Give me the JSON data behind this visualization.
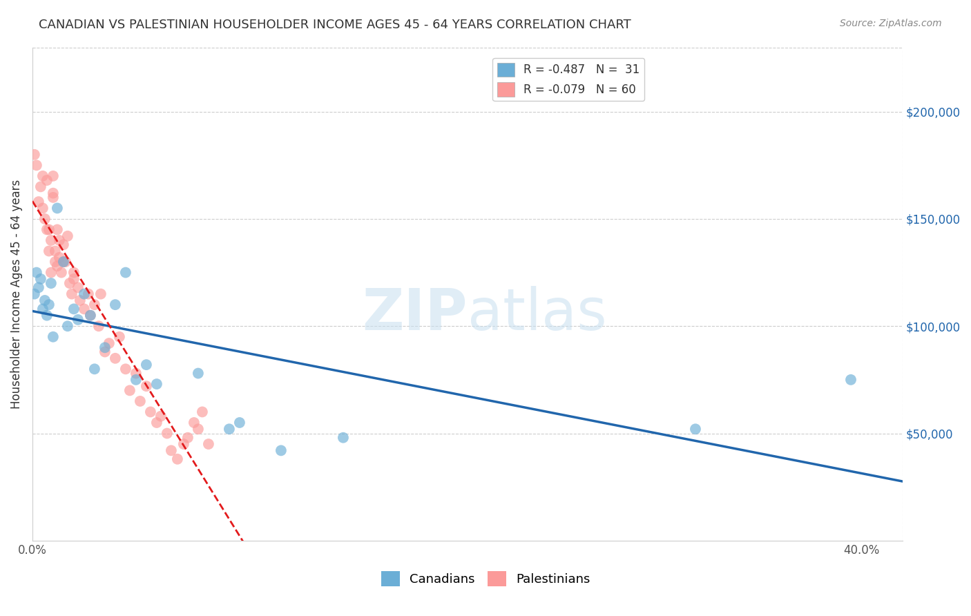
{
  "title": "CANADIAN VS PALESTINIAN HOUSEHOLDER INCOME AGES 45 - 64 YEARS CORRELATION CHART",
  "source": "Source: ZipAtlas.com",
  "ylabel": "Householder Income Ages 45 - 64 years",
  "ytick_values": [
    50000,
    100000,
    150000,
    200000
  ],
  "ylim": [
    0,
    230000
  ],
  "xlim": [
    0.0,
    0.42
  ],
  "legend_blue_r": "-0.487",
  "legend_blue_n": "31",
  "legend_pink_r": "-0.079",
  "legend_pink_n": "60",
  "canadians_label": "Canadians",
  "palestinians_label": "Palestinians",
  "blue_color": "#6baed6",
  "pink_color": "#fb9a99",
  "blue_line_color": "#2166ac",
  "pink_line_color": "#e31a1c",
  "watermark_zip": "ZIP",
  "watermark_atlas": "atlas",
  "canadians_x": [
    0.001,
    0.002,
    0.003,
    0.004,
    0.005,
    0.006,
    0.007,
    0.008,
    0.009,
    0.01,
    0.012,
    0.015,
    0.017,
    0.02,
    0.022,
    0.025,
    0.028,
    0.03,
    0.035,
    0.04,
    0.045,
    0.05,
    0.055,
    0.06,
    0.08,
    0.095,
    0.1,
    0.12,
    0.15,
    0.32,
    0.395
  ],
  "canadians_y": [
    115000,
    125000,
    118000,
    122000,
    108000,
    112000,
    105000,
    110000,
    120000,
    95000,
    155000,
    130000,
    100000,
    108000,
    103000,
    115000,
    105000,
    80000,
    90000,
    110000,
    125000,
    75000,
    82000,
    73000,
    78000,
    52000,
    55000,
    42000,
    48000,
    52000,
    75000
  ],
  "palestinians_x": [
    0.001,
    0.002,
    0.003,
    0.004,
    0.005,
    0.006,
    0.007,
    0.008,
    0.009,
    0.01,
    0.011,
    0.012,
    0.013,
    0.014,
    0.015,
    0.016,
    0.017,
    0.018,
    0.019,
    0.02,
    0.022,
    0.023,
    0.025,
    0.027,
    0.028,
    0.03,
    0.032,
    0.033,
    0.035,
    0.037,
    0.04,
    0.042,
    0.045,
    0.047,
    0.05,
    0.052,
    0.055,
    0.057,
    0.06,
    0.062,
    0.065,
    0.067,
    0.07,
    0.073,
    0.075,
    0.078,
    0.08,
    0.082,
    0.085,
    0.01,
    0.015,
    0.02,
    0.01,
    0.012,
    0.005,
    0.007,
    0.008,
    0.009,
    0.011,
    0.013
  ],
  "palestinians_y": [
    180000,
    175000,
    158000,
    165000,
    170000,
    150000,
    168000,
    145000,
    140000,
    162000,
    135000,
    128000,
    132000,
    125000,
    138000,
    130000,
    142000,
    120000,
    115000,
    122000,
    118000,
    112000,
    108000,
    115000,
    105000,
    110000,
    100000,
    115000,
    88000,
    92000,
    85000,
    95000,
    80000,
    70000,
    78000,
    65000,
    72000,
    60000,
    55000,
    58000,
    50000,
    42000,
    38000,
    45000,
    48000,
    55000,
    52000,
    60000,
    45000,
    170000,
    130000,
    125000,
    160000,
    145000,
    155000,
    145000,
    135000,
    125000,
    130000,
    140000
  ]
}
